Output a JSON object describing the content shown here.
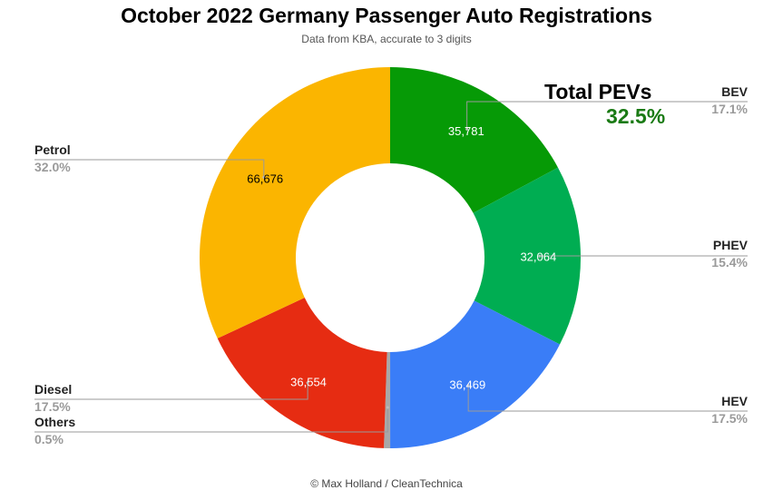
{
  "header": {
    "title": "October 2022 Germany Passenger Auto Registrations",
    "subtitle": "Data from KBA, accurate to 3 digits"
  },
  "callout": {
    "label": "Total PEVs",
    "value": "32.5%",
    "color": "#1a7a14"
  },
  "credit": "© Max Holland / CleanTechnica",
  "chart_data": {
    "type": "pie",
    "style": "donut",
    "title": "October 2022 Germany Passenger Auto Registrations",
    "subtitle": "Data from KBA, accurate to 3 digits",
    "slices": [
      {
        "name": "BEV",
        "value": 35781,
        "value_label": "35,781",
        "percent_label": "17.1%",
        "color": "#069a06",
        "text_color": "#ffffff"
      },
      {
        "name": "PHEV",
        "value": 32064,
        "value_label": "32,064",
        "percent_label": "15.4%",
        "color": "#00ad52",
        "text_color": "#ffffff"
      },
      {
        "name": "HEV",
        "value": 36469,
        "value_label": "36,469",
        "percent_label": "17.5%",
        "color": "#3a7df7",
        "text_color": "#ffffff"
      },
      {
        "name": "Others",
        "value": 1100,
        "value_label": "",
        "percent_label": "0.5%",
        "color": "#a8a8a8",
        "text_color": "#ffffff"
      },
      {
        "name": "Diesel",
        "value": 36554,
        "value_label": "36,554",
        "percent_label": "17.5%",
        "color": "#e62c12",
        "text_color": "#ffffff"
      },
      {
        "name": "Petrol",
        "value": 66676,
        "value_label": "66,676",
        "percent_label": "32.0%",
        "color": "#fbb500",
        "text_color": "#000000"
      }
    ],
    "legend": "outside labels with leader lines"
  }
}
